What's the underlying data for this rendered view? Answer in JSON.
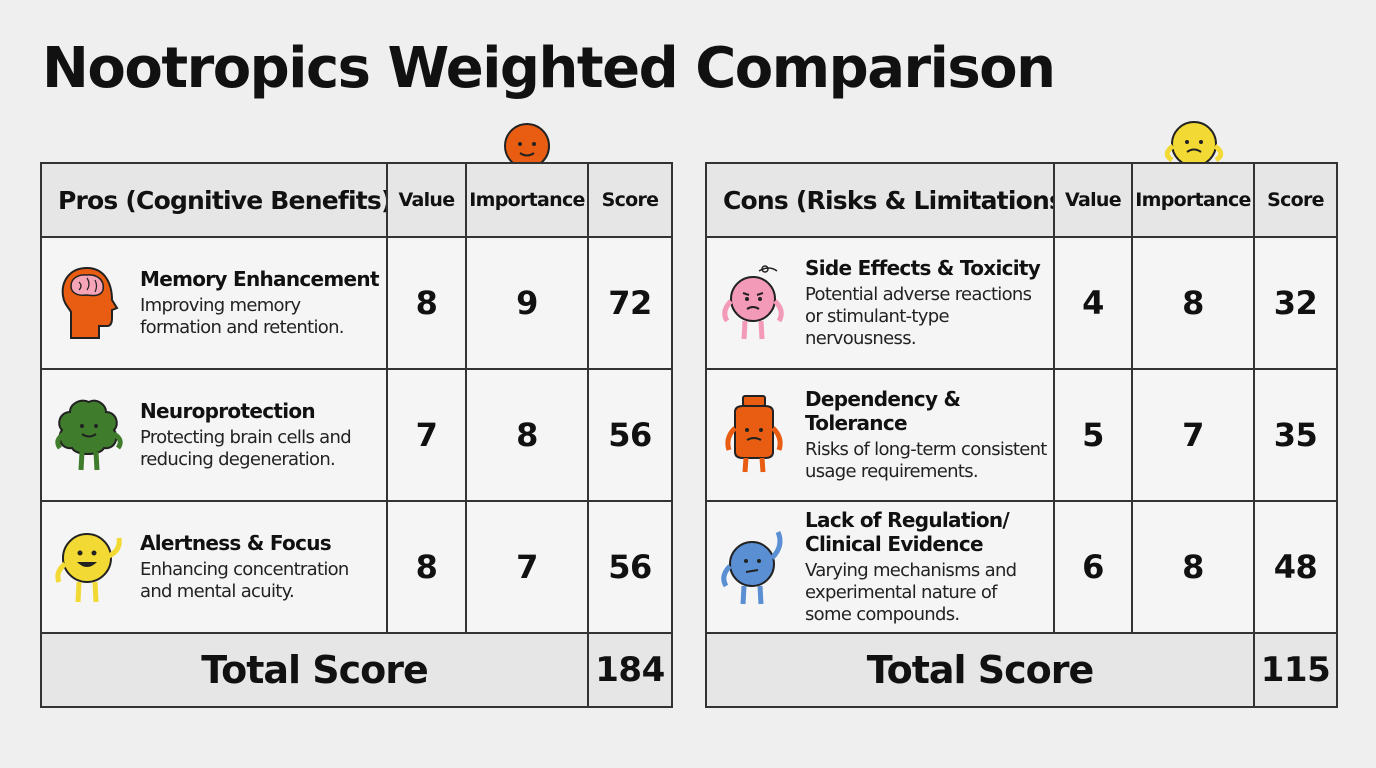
{
  "title": "Nootropics Weighted Comparison",
  "pros": {
    "header": {
      "category": "Pros (Cognitive Benefits)",
      "value": "Value",
      "importance": "Importance",
      "score": "Score"
    },
    "rows": [
      {
        "title": "Memory Enhancement",
        "desc": "Improving memory formation and retention.",
        "value": "8",
        "importance": "9",
        "score": "72",
        "icon": "head-brain-icon"
      },
      {
        "title": "Neuroprotection",
        "desc": "Protecting brain cells and reducing degeneration.",
        "value": "7",
        "importance": "8",
        "score": "56",
        "icon": "green-brain-character-icon"
      },
      {
        "title": "Alertness & Focus",
        "desc": "Enhancing concentration and mental acuity.",
        "value": "8",
        "importance": "7",
        "score": "56",
        "icon": "yellow-smiley-character-icon"
      }
    ],
    "total_label": "Total Score",
    "total_value": "184"
  },
  "cons": {
    "header": {
      "category": "Cons (Risks & Limitations)",
      "value": "Value",
      "importance": "Importance",
      "score": "Score"
    },
    "rows": [
      {
        "title": "Side Effects & Toxicity",
        "desc": "Potential adverse reactions or stimulant-type nervousness.",
        "value": "4",
        "importance": "8",
        "score": "32",
        "icon": "pink-dizzy-character-icon"
      },
      {
        "title": "Dependency & Tolerance",
        "desc": "Risks of long-term consistent usage requirements.",
        "value": "5",
        "importance": "7",
        "score": "35",
        "icon": "orange-bottle-character-icon"
      },
      {
        "title": "Lack of Regulation/ Clinical Evidence",
        "desc": "Varying mechanisms and experimental nature of some compounds.",
        "value": "6",
        "importance": "8",
        "score": "48",
        "icon": "blue-confused-character-icon"
      }
    ],
    "total_label": "Total Score",
    "total_value": "115"
  },
  "colors": {
    "background": "#efefef",
    "header_fill": "#e6e6e6",
    "border": "#333333",
    "orange": "#e85d12",
    "green": "#3f7d2c",
    "yellow": "#f2d933",
    "pink": "#f29ab8",
    "blue": "#5b8fd4"
  }
}
